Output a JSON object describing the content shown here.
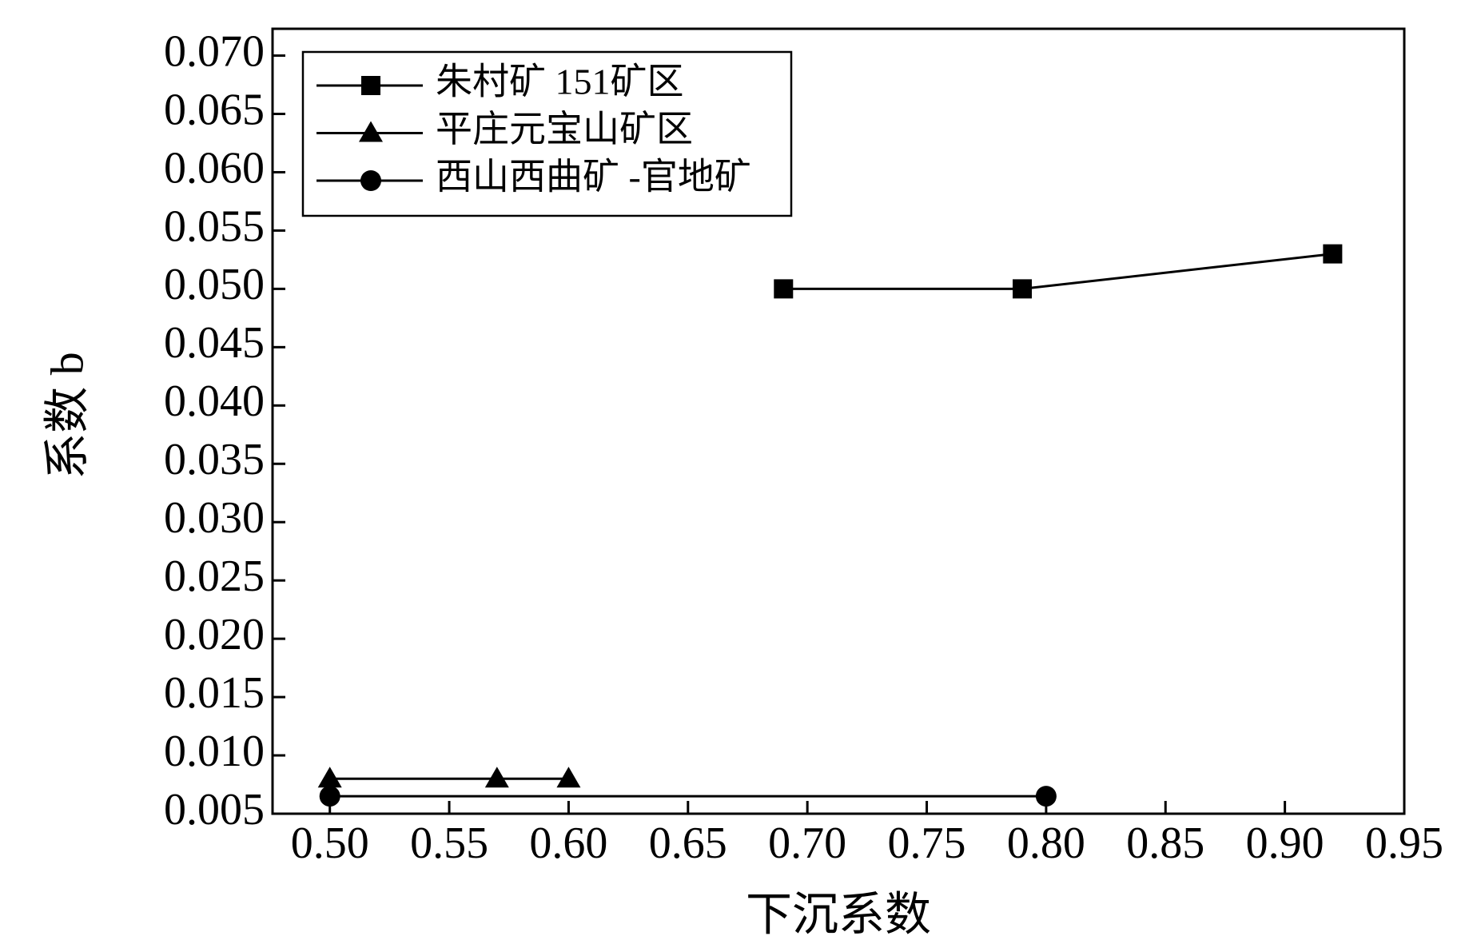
{
  "chart_data": {
    "type": "line",
    "x_label": "下沉系数",
    "y_label": "系数 b",
    "xlim": [
      0.476,
      0.95
    ],
    "ylim": [
      0.005,
      0.0723
    ],
    "xticks": [
      {
        "value": 0.5,
        "label": "0.50"
      },
      {
        "value": 0.55,
        "label": "0.55"
      },
      {
        "value": 0.6,
        "label": "0.60"
      },
      {
        "value": 0.65,
        "label": "0.65"
      },
      {
        "value": 0.7,
        "label": "0.70"
      },
      {
        "value": 0.75,
        "label": "0.75"
      },
      {
        "value": 0.8,
        "label": "0.80"
      },
      {
        "value": 0.85,
        "label": "0.85"
      },
      {
        "value": 0.9,
        "label": "0.90"
      },
      {
        "value": 0.95,
        "label": "0.95"
      }
    ],
    "yticks": [
      {
        "value": 0.005,
        "label": "0.005"
      },
      {
        "value": 0.01,
        "label": "0.010"
      },
      {
        "value": 0.015,
        "label": "0.015"
      },
      {
        "value": 0.02,
        "label": "0.020"
      },
      {
        "value": 0.025,
        "label": "0.025"
      },
      {
        "value": 0.03,
        "label": "0.030"
      },
      {
        "value": 0.035,
        "label": "0.035"
      },
      {
        "value": 0.04,
        "label": "0.040"
      },
      {
        "value": 0.045,
        "label": "0.045"
      },
      {
        "value": 0.05,
        "label": "0.050"
      },
      {
        "value": 0.055,
        "label": "0.055"
      },
      {
        "value": 0.06,
        "label": "0.060"
      },
      {
        "value": 0.065,
        "label": "0.065"
      },
      {
        "value": 0.07,
        "label": "0.070"
      }
    ],
    "legend": "upper left",
    "series": [
      {
        "name": "朱村矿 151矿区",
        "color": "#000000",
        "marker": "square",
        "x": [
          0.69,
          0.79,
          0.92
        ],
        "values": [
          0.05,
          0.05,
          0.053
        ]
      },
      {
        "name": "平庄元宝山矿区",
        "color": "#000000",
        "marker": "triangle",
        "x": [
          0.5,
          0.57,
          0.6
        ],
        "values": [
          0.008,
          0.008,
          0.008
        ]
      },
      {
        "name": "西山西曲矿 -官地矿",
        "color": "#000000",
        "marker": "circle",
        "x": [
          0.5,
          0.8
        ],
        "values": [
          0.0065,
          0.0065
        ]
      }
    ]
  }
}
